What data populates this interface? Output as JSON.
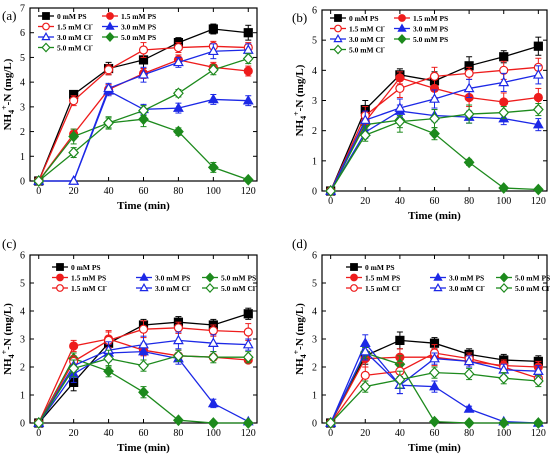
{
  "colors": {
    "0 mM PS": "#000000",
    "1.5 mM PS": "#ee1c1c",
    "3.0 mM PS": "#1c28e6",
    "5.0 mM PS": "#1d8a1d",
    "1.5 mM Cl-": "#ee1c1c",
    "3.0 mM Cl-": "#1c28e6",
    "5.0 mM Cl-": "#1d8a1d"
  },
  "chart_data": [
    {
      "type": "line",
      "panel_label": "(a)",
      "xlabel": "Time (min)",
      "ylabel": "NH4+-N (mg/L)",
      "xlim": [
        -5,
        125
      ],
      "ylim": [
        0,
        7
      ],
      "xticks": [
        "0",
        "20",
        "40",
        "60",
        "80",
        "100",
        "120"
      ],
      "yticks": [
        "0",
        "1",
        "2",
        "3",
        "4",
        "5",
        "6",
        "7"
      ],
      "legend_position": "top-left",
      "x": [
        0,
        20,
        40,
        60,
        80,
        100,
        120
      ],
      "series": [
        {
          "name": "0 mM PS",
          "marker": "square",
          "filled": true,
          "values": [
            0,
            3.5,
            4.55,
            4.9,
            5.6,
            6.15,
            6.0
          ],
          "err": [
            0.05,
            0.15,
            0.25,
            0.35,
            0.2,
            0.2,
            0.3
          ]
        },
        {
          "name": "1.5 mM PS",
          "marker": "circle",
          "filled": true,
          "values": [
            0,
            1.9,
            3.7,
            4.35,
            4.9,
            4.6,
            4.45
          ],
          "err": [
            0.05,
            0.2,
            0.2,
            0.2,
            0.2,
            0.2,
            0.2
          ]
        },
        {
          "name": "3.0 mM PS",
          "marker": "triangle",
          "filled": true,
          "values": [
            0,
            0,
            3.65,
            2.9,
            2.95,
            3.3,
            3.25
          ],
          "err": [
            0.05,
            0.05,
            0.2,
            0.2,
            0.2,
            0.2,
            0.2
          ]
        },
        {
          "name": "5.0 mM PS",
          "marker": "diamond",
          "filled": true,
          "values": [
            0,
            1.8,
            2.35,
            2.5,
            2.0,
            0.55,
            0.05
          ],
          "err": [
            0.05,
            0.3,
            0.25,
            0.3,
            0.15,
            0.2,
            0.05
          ]
        },
        {
          "name": "1.5 mM Cl-",
          "marker": "circle",
          "filled": false,
          "values": [
            0,
            3.25,
            4.5,
            5.3,
            5.4,
            5.45,
            5.4
          ],
          "err": [
            0.05,
            0.2,
            0.2,
            0.3,
            0.2,
            0.2,
            0.2
          ]
        },
        {
          "name": "3.0 mM Cl-",
          "marker": "triangle",
          "filled": false,
          "values": [
            0,
            0,
            3.75,
            4.3,
            4.8,
            5.25,
            5.3
          ],
          "err": [
            0.05,
            0.05,
            0.2,
            0.3,
            0.2,
            0.3,
            0.25
          ]
        },
        {
          "name": "5.0 mM Cl-",
          "marker": "diamond",
          "filled": false,
          "values": [
            0,
            1.15,
            2.35,
            2.85,
            3.55,
            4.5,
            4.95
          ],
          "err": [
            0.05,
            0.2,
            0.2,
            0.2,
            0.15,
            0.2,
            0.2
          ]
        }
      ]
    },
    {
      "type": "line",
      "panel_label": "(b)",
      "xlabel": "Time (min)",
      "ylabel": "NH4+-N (mg/L)",
      "xlim": [
        -5,
        125
      ],
      "ylim": [
        0,
        6
      ],
      "xticks": [
        "0",
        "20",
        "40",
        "60",
        "80",
        "100",
        "120"
      ],
      "yticks": [
        "0",
        "1",
        "2",
        "3",
        "4",
        "5",
        "6"
      ],
      "legend_position": "top-left",
      "x": [
        0,
        20,
        40,
        60,
        80,
        100,
        120
      ],
      "series": [
        {
          "name": "0 mM PS",
          "marker": "square",
          "filled": true,
          "values": [
            0,
            2.7,
            3.85,
            3.65,
            4.15,
            4.45,
            4.8
          ],
          "err": [
            0.05,
            0.3,
            0.2,
            0.3,
            0.3,
            0.2,
            0.3
          ]
        },
        {
          "name": "1.5 mM PS",
          "marker": "circle",
          "filled": true,
          "values": [
            0,
            2.3,
            3.75,
            3.4,
            3.1,
            2.95,
            3.1
          ],
          "err": [
            0.05,
            0.3,
            0.2,
            0.3,
            0.3,
            0.3,
            0.3
          ]
        },
        {
          "name": "3.0 mM PS",
          "marker": "triangle",
          "filled": true,
          "values": [
            0,
            1.95,
            2.65,
            2.5,
            2.45,
            2.4,
            2.2
          ],
          "err": [
            0.05,
            0.2,
            0.2,
            0.2,
            0.2,
            0.2,
            0.2
          ]
        },
        {
          "name": "5.0 mM PS",
          "marker": "diamond",
          "filled": true,
          "values": [
            0,
            2.2,
            2.35,
            1.9,
            0.95,
            0.1,
            0.05
          ],
          "err": [
            0.05,
            0.3,
            0.4,
            0.2,
            0.1,
            0.05,
            0.05
          ]
        },
        {
          "name": "1.5 mM Cl-",
          "marker": "circle",
          "filled": false,
          "values": [
            0,
            2.5,
            3.4,
            3.8,
            3.9,
            4.0,
            4.1
          ],
          "err": [
            0.05,
            0.3,
            0.3,
            0.3,
            0.2,
            0.3,
            0.3
          ]
        },
        {
          "name": "3.0 mM Cl-",
          "marker": "triangle",
          "filled": false,
          "values": [
            0,
            2.35,
            2.75,
            3.05,
            3.4,
            3.6,
            3.85
          ],
          "err": [
            0.05,
            0.3,
            0.3,
            0.3,
            0.3,
            0.3,
            0.3
          ]
        },
        {
          "name": "5.0 mM Cl-",
          "marker": "diamond",
          "filled": false,
          "values": [
            0,
            1.85,
            2.3,
            2.4,
            2.55,
            2.6,
            2.7
          ],
          "err": [
            0.05,
            0.2,
            0.2,
            0.3,
            0.3,
            0.2,
            0.2
          ]
        }
      ]
    },
    {
      "type": "line",
      "panel_label": "(c)",
      "xlabel": "Time (min)",
      "ylabel": "NH4+-N (mg/L)",
      "xlim": [
        -5,
        125
      ],
      "ylim": [
        0,
        6
      ],
      "xticks": [
        "0",
        "20",
        "40",
        "60",
        "80",
        "100",
        "120"
      ],
      "yticks": [
        "0",
        "1",
        "2",
        "3",
        "4",
        "5",
        "6"
      ],
      "legend_position": "top",
      "x": [
        0,
        20,
        40,
        60,
        80,
        100,
        120
      ],
      "series": [
        {
          "name": "0 mM PS",
          "marker": "square",
          "filled": true,
          "values": [
            0,
            1.45,
            2.85,
            3.5,
            3.6,
            3.5,
            3.9
          ],
          "err": [
            0.05,
            0.3,
            0.2,
            0.2,
            0.2,
            0.2,
            0.2
          ]
        },
        {
          "name": "1.5 mM PS",
          "marker": "circle",
          "filled": true,
          "values": [
            0,
            2.75,
            3.0,
            2.6,
            2.4,
            2.35,
            2.25
          ],
          "err": [
            0.05,
            0.2,
            0.3,
            0.2,
            0.2,
            0.1,
            0.1
          ]
        },
        {
          "name": "3.0 mM PS",
          "marker": "triangle",
          "filled": true,
          "values": [
            0,
            1.75,
            2.5,
            2.55,
            2.3,
            0.7,
            0.05
          ],
          "err": [
            0.05,
            0.3,
            0.3,
            0.3,
            0.2,
            0.15,
            0.05
          ]
        },
        {
          "name": "5.0 mM PS",
          "marker": "diamond",
          "filled": true,
          "values": [
            0,
            2.3,
            1.85,
            1.1,
            0.1,
            0.0,
            0.0
          ],
          "err": [
            0.05,
            0.2,
            0.2,
            0.2,
            0.05,
            0.05,
            0.05
          ]
        },
        {
          "name": "1.5 mM Cl-",
          "marker": "circle",
          "filled": false,
          "values": [
            0,
            2.2,
            2.95,
            3.35,
            3.4,
            3.3,
            3.25
          ],
          "err": [
            0.05,
            0.2,
            0.3,
            0.3,
            0.2,
            0.2,
            0.3
          ]
        },
        {
          "name": "3.0 mM Cl-",
          "marker": "triangle",
          "filled": false,
          "values": [
            0,
            2.05,
            2.6,
            2.8,
            2.95,
            2.85,
            2.8
          ],
          "err": [
            0.05,
            0.2,
            0.3,
            0.3,
            0.3,
            0.3,
            0.2
          ]
        },
        {
          "name": "5.0 mM Cl-",
          "marker": "diamond",
          "filled": false,
          "values": [
            0,
            1.95,
            2.3,
            2.05,
            2.4,
            2.35,
            2.35
          ],
          "err": [
            0.05,
            0.3,
            0.3,
            0.2,
            0.2,
            0.2,
            0.2
          ]
        }
      ]
    },
    {
      "type": "line",
      "panel_label": "(d)",
      "xlabel": "Time (min)",
      "ylabel": "NH4+-N (mg/L)",
      "xlim": [
        -5,
        125
      ],
      "ylim": [
        0,
        6
      ],
      "xticks": [
        "0",
        "20",
        "40",
        "60",
        "80",
        "100",
        "120"
      ],
      "yticks": [
        "0",
        "1",
        "2",
        "3",
        "4",
        "5",
        "6"
      ],
      "legend_position": "top",
      "x": [
        0,
        20,
        40,
        60,
        80,
        100,
        120
      ],
      "series": [
        {
          "name": "0 mM PS",
          "marker": "square",
          "filled": true,
          "values": [
            0,
            2.4,
            2.95,
            2.85,
            2.45,
            2.25,
            2.2
          ],
          "err": [
            0.05,
            0.3,
            0.3,
            0.2,
            0.2,
            0.2,
            0.2
          ]
        },
        {
          "name": "1.5 mM PS",
          "marker": "circle",
          "filled": true,
          "values": [
            0,
            2.3,
            2.35,
            2.35,
            2.2,
            2.05,
            2.0
          ],
          "err": [
            0.05,
            0.3,
            0.3,
            0.3,
            0.2,
            0.2,
            0.2
          ]
        },
        {
          "name": "3.0 mM PS",
          "marker": "triangle",
          "filled": true,
          "values": [
            0,
            2.85,
            1.35,
            1.3,
            0.5,
            0.05,
            0.0
          ],
          "err": [
            0.05,
            0.3,
            0.3,
            0.2,
            0.1,
            0.05,
            0.05
          ]
        },
        {
          "name": "5.0 mM PS",
          "marker": "diamond",
          "filled": true,
          "values": [
            0,
            2.5,
            2.1,
            0.05,
            0.0,
            0.0,
            0.0
          ],
          "err": [
            0.05,
            0.2,
            0.3,
            0.05,
            0.05,
            0.05,
            0.05
          ]
        },
        {
          "name": "1.5 mM Cl-",
          "marker": "circle",
          "filled": false,
          "values": [
            0,
            1.7,
            1.85,
            2.5,
            2.3,
            2.0,
            1.6
          ],
          "err": [
            0.05,
            0.3,
            0.3,
            0.3,
            0.2,
            0.2,
            0.2
          ]
        },
        {
          "name": "3.0 mM Cl-",
          "marker": "triangle",
          "filled": false,
          "values": [
            0,
            2.55,
            1.35,
            2.3,
            2.2,
            1.9,
            1.85
          ],
          "err": [
            0.05,
            0.3,
            0.3,
            0.2,
            0.2,
            0.2,
            0.2
          ]
        },
        {
          "name": "5.0 mM Cl-",
          "marker": "diamond",
          "filled": false,
          "values": [
            0,
            1.3,
            1.55,
            1.8,
            1.75,
            1.6,
            1.5
          ],
          "err": [
            0.05,
            0.2,
            0.3,
            0.2,
            0.2,
            0.2,
            0.2
          ]
        }
      ]
    }
  ]
}
